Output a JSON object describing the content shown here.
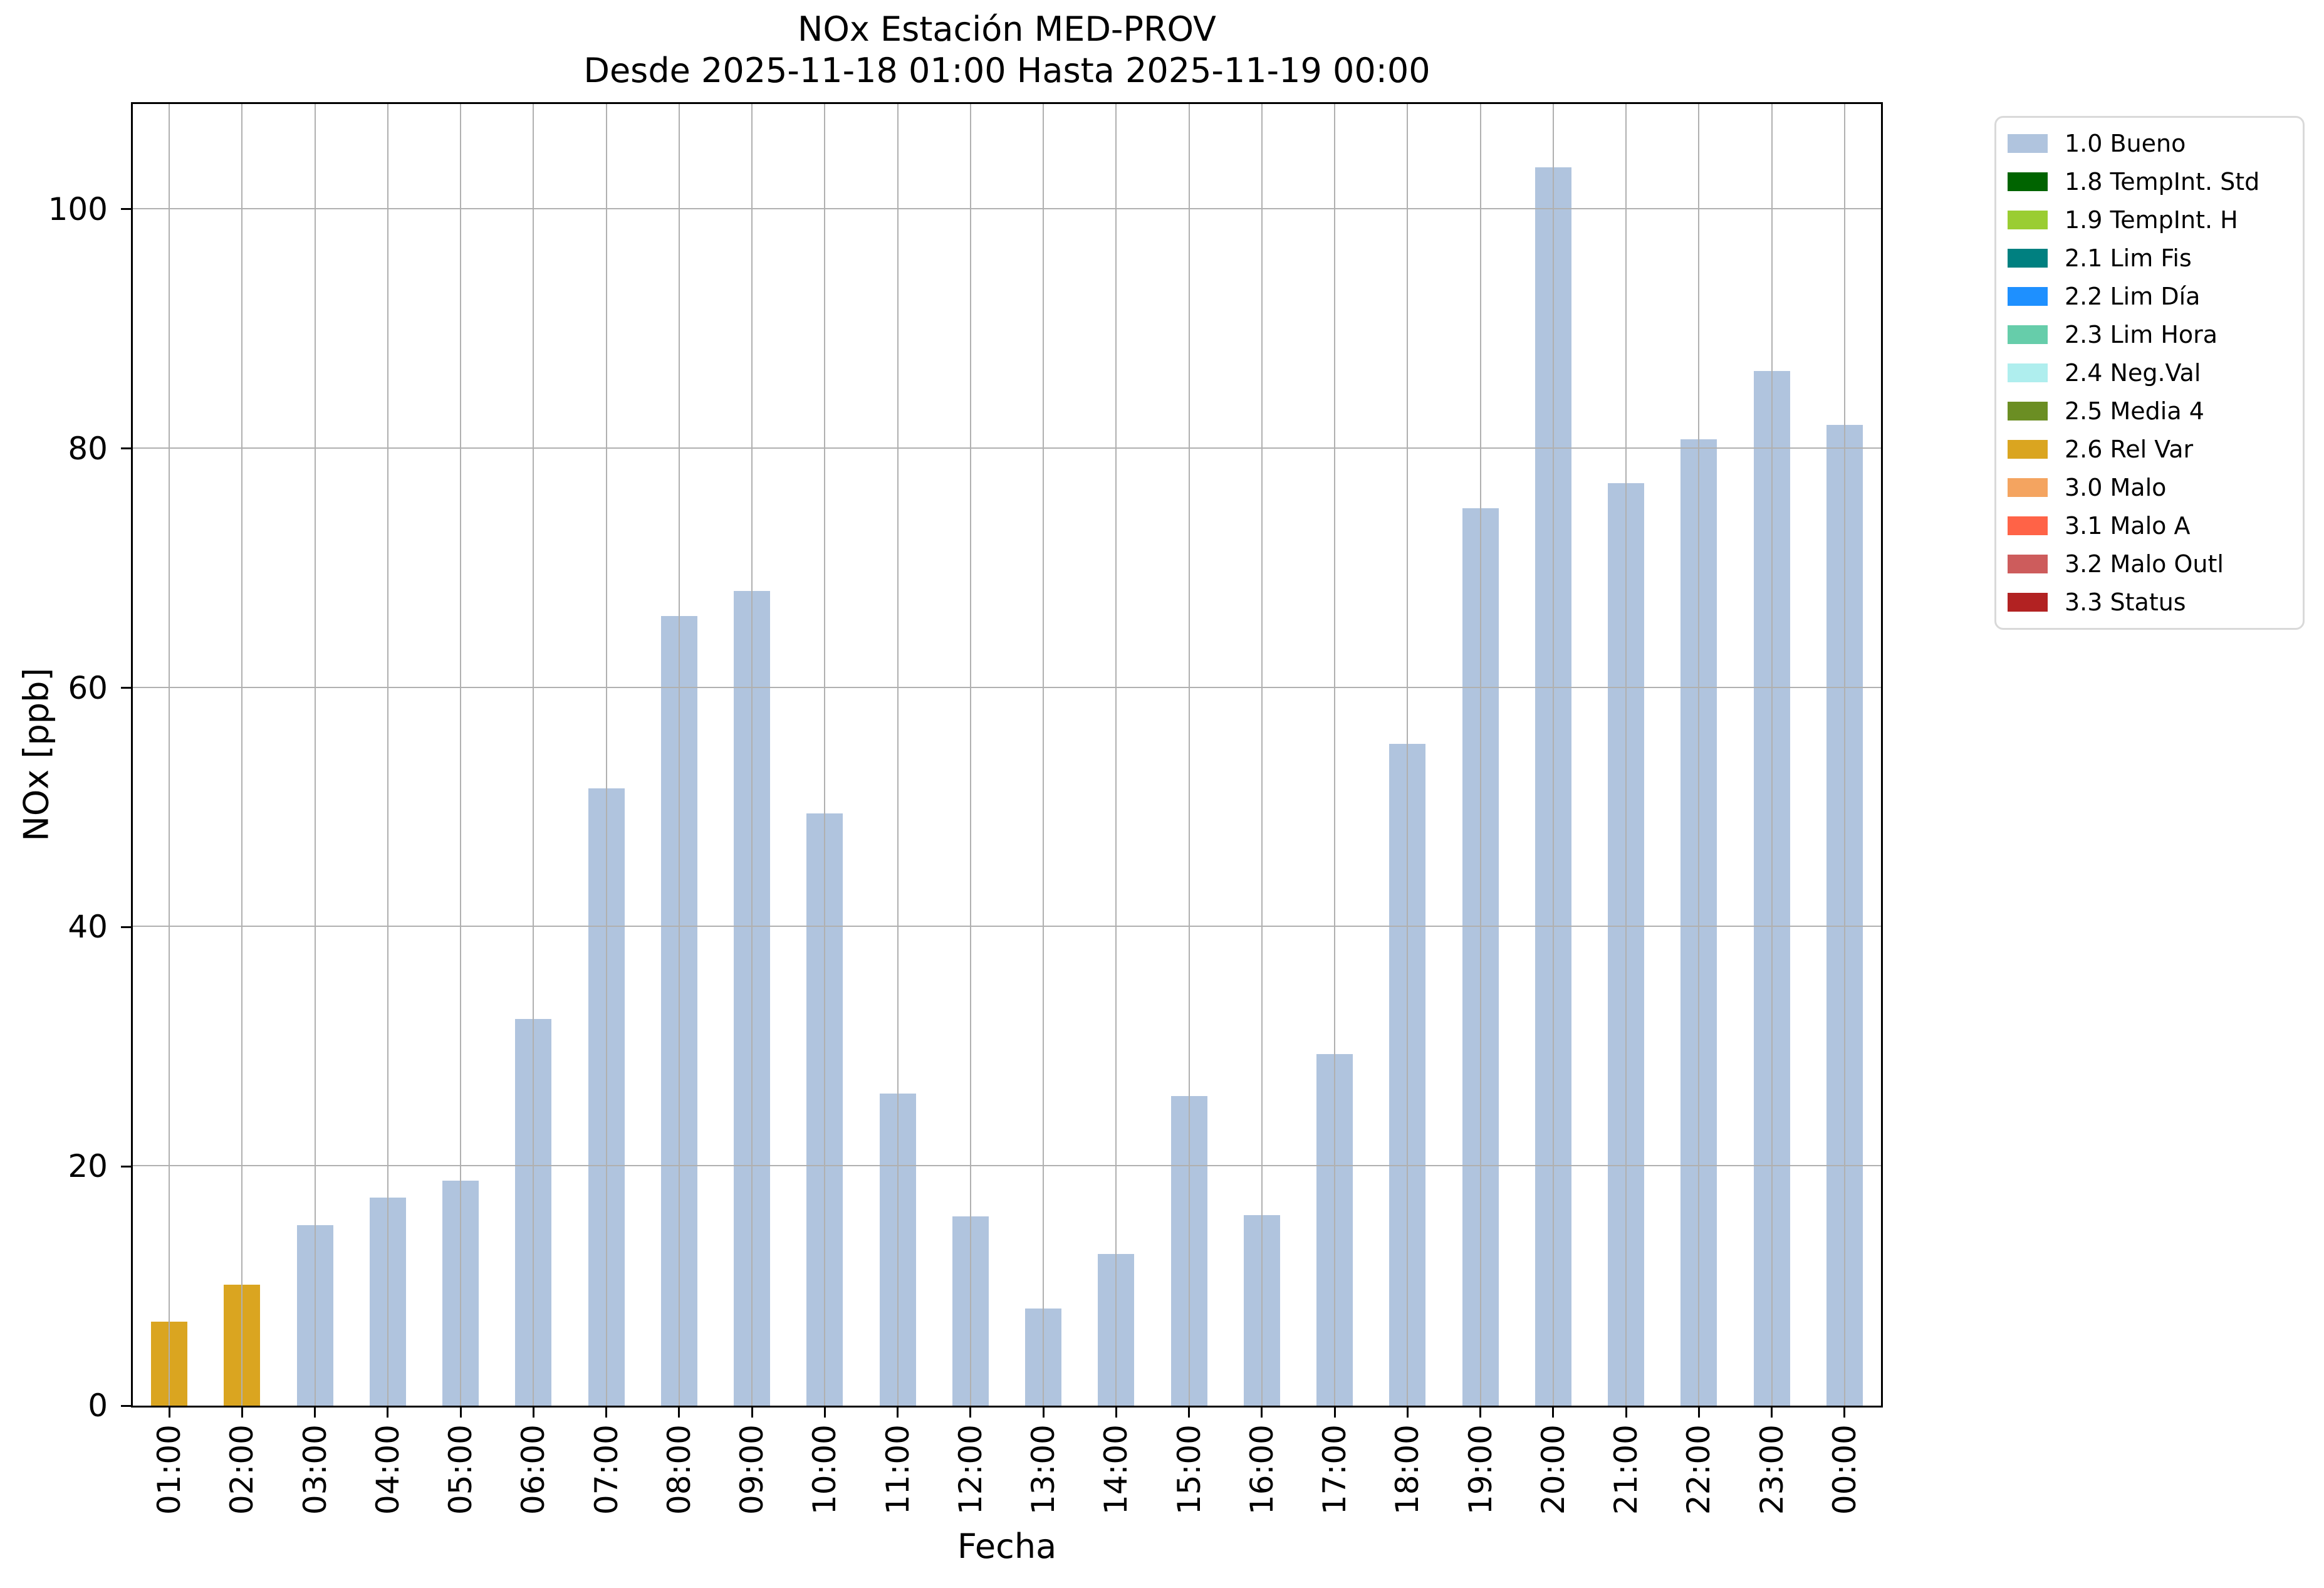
{
  "chart_data": {
    "type": "bar",
    "title": "NOx Estación MED-PROV",
    "subtitle": "Desde 2025-11-18 01:00 Hasta 2025-11-19 00:00",
    "xlabel": "Fecha",
    "ylabel": "NOx [ppb]",
    "ylim": [
      0,
      108.8
    ],
    "yticks": [
      0,
      20,
      40,
      60,
      80,
      100
    ],
    "grid": true,
    "grid_above_bars": true,
    "legend_position": "outside-upper-right",
    "categories": [
      "01:00",
      "02:00",
      "03:00",
      "04:00",
      "05:00",
      "06:00",
      "07:00",
      "08:00",
      "09:00",
      "10:00",
      "11:00",
      "12:00",
      "13:00",
      "14:00",
      "15:00",
      "16:00",
      "17:00",
      "18:00",
      "19:00",
      "20:00",
      "21:00",
      "22:00",
      "23:00",
      "00:00"
    ],
    "values": [
      7.0,
      10.1,
      15.1,
      17.4,
      18.8,
      32.3,
      51.6,
      66.0,
      68.1,
      49.5,
      26.1,
      15.8,
      8.1,
      12.7,
      25.9,
      15.9,
      29.4,
      55.3,
      75.0,
      103.5,
      77.1,
      80.8,
      86.5,
      82.0
    ],
    "flag_codes": [
      "2.6",
      "2.6",
      "1.0",
      "1.0",
      "1.0",
      "1.0",
      "1.0",
      "1.0",
      "1.0",
      "1.0",
      "1.0",
      "1.0",
      "1.0",
      "1.0",
      "1.0",
      "1.0",
      "1.0",
      "1.0",
      "1.0",
      "1.0",
      "1.0",
      "1.0",
      "1.0",
      "1.0"
    ]
  },
  "legend": {
    "entries": [
      {
        "code": "1.0",
        "name": "Bueno",
        "color": "#b0c4de"
      },
      {
        "code": "1.8",
        "name": "TempInt. Std",
        "color": "#006400"
      },
      {
        "code": "1.9",
        "name": "TempInt. H",
        "color": "#9acd32"
      },
      {
        "code": "2.1",
        "name": "Lim Fis",
        "color": "#008080"
      },
      {
        "code": "2.2",
        "name": "Lim Día",
        "color": "#1e90ff"
      },
      {
        "code": "2.3",
        "name": "Lim Hora",
        "color": "#66cdaa"
      },
      {
        "code": "2.4",
        "name": "Neg.Val",
        "color": "#afeeee"
      },
      {
        "code": "2.5",
        "name": "Media 4",
        "color": "#6b8e23"
      },
      {
        "code": "2.6",
        "name": "Rel Var",
        "color": "#daa520"
      },
      {
        "code": "3.0",
        "name": "Malo",
        "color": "#f4a460"
      },
      {
        "code": "3.1",
        "name": "Malo A",
        "color": "#ff6347"
      },
      {
        "code": "3.2",
        "name": "Malo Outl",
        "color": "#cd5c5c"
      },
      {
        "code": "3.3",
        "name": "Status",
        "color": "#b22222"
      }
    ]
  },
  "colors": {
    "grid": "#b0b0b0",
    "spine": "#000000",
    "background": "#ffffff",
    "legend_border": "#d9d9d9"
  }
}
